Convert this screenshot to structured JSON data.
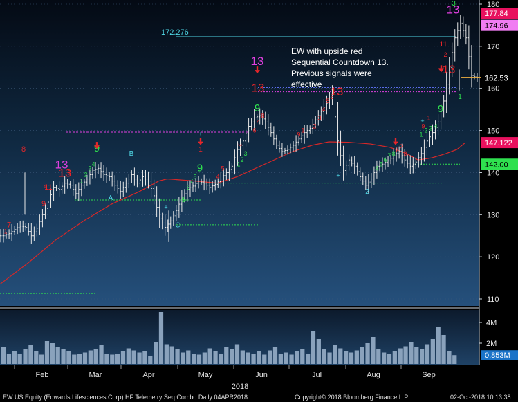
{
  "chart_data": {
    "type": "line",
    "title": "EW US Equity (Edwards Lifesciences Corp) HF Telemetry Seq Combo  Daily 04APR2018",
    "copyright": "Copyright© 2018 Bloomberg Finance L.P.",
    "timestamp": "02-Oct-2018 10:13:38",
    "year_label": "2018",
    "months": [
      "Feb",
      "Mar",
      "Apr",
      "May",
      "Jun",
      "Jul",
      "Aug",
      "Sep"
    ],
    "y_ticks": [
      110,
      120,
      130,
      140,
      150,
      160,
      170,
      180
    ],
    "ylim": [
      108,
      180.5
    ],
    "volume_ticks": [
      "2M",
      "4M"
    ],
    "volume_ylim": [
      0,
      5.2
    ],
    "price_tags": [
      {
        "label": "177.84",
        "value": 177.84,
        "color": "#e8115e"
      },
      {
        "label": "174.96",
        "value": 174.96,
        "color": "#f07cf2"
      },
      {
        "label": "162.53",
        "value": 162.53,
        "color": "#000000"
      },
      {
        "label": "147.122",
        "value": 147.122,
        "color": "#e8115e"
      },
      {
        "label": "142.00",
        "value": 142.0,
        "color": "#2fe04f"
      }
    ],
    "volume_tag": {
      "label": "0.853M",
      "value": 0.853
    },
    "resistance_level": {
      "label": "172.276",
      "value": 172.276
    },
    "annotation": [
      "EW with upside red",
      "Sequential Countdown 13.",
      "Previous signals were",
      "effective"
    ],
    "price_series": [
      [
        1,
        125.0
      ],
      [
        3,
        125.5
      ],
      [
        5,
        126.5
      ],
      [
        7,
        127.3
      ],
      [
        9,
        127.0
      ],
      [
        11,
        125.0
      ],
      [
        13,
        126.8
      ],
      [
        15,
        130.0
      ],
      [
        17,
        133.0
      ],
      [
        19,
        136.5
      ],
      [
        21,
        136.0
      ],
      [
        23,
        137.5
      ],
      [
        25,
        137.0
      ],
      [
        27,
        135.0
      ],
      [
        29,
        137.0
      ],
      [
        31,
        138.5
      ],
      [
        33,
        140.5
      ],
      [
        35,
        141.0
      ],
      [
        37,
        139.5
      ],
      [
        39,
        139.0
      ],
      [
        41,
        137.0
      ],
      [
        43,
        135.5
      ],
      [
        45,
        137.5
      ],
      [
        47,
        139.5
      ],
      [
        49,
        137.5
      ],
      [
        51,
        139.0
      ],
      [
        53,
        138.0
      ],
      [
        55,
        134.5
      ],
      [
        57,
        129.0
      ],
      [
        59,
        127.0
      ],
      [
        61,
        128.5
      ],
      [
        63,
        131.0
      ],
      [
        65,
        134.0
      ],
      [
        67,
        136.0
      ],
      [
        69,
        136.8
      ],
      [
        71,
        138.0
      ],
      [
        73,
        137.5
      ],
      [
        75,
        136.5
      ],
      [
        77,
        137.2
      ],
      [
        79,
        138.5
      ],
      [
        81,
        140.0
      ],
      [
        83,
        141.5
      ],
      [
        85,
        145.5
      ],
      [
        87,
        147.5
      ],
      [
        89,
        151.0
      ],
      [
        91,
        153.0
      ],
      [
        93,
        153.5
      ],
      [
        95,
        152.0
      ],
      [
        97,
        149.5
      ],
      [
        99,
        146.5
      ],
      [
        101,
        145.0
      ],
      [
        103,
        145.5
      ],
      [
        105,
        146.5
      ],
      [
        107,
        148.0
      ],
      [
        109,
        149.5
      ],
      [
        111,
        150.5
      ],
      [
        113,
        152.5
      ],
      [
        115,
        154.5
      ],
      [
        117,
        156.5
      ],
      [
        119,
        159.0
      ],
      [
        121,
        147.5
      ],
      [
        123,
        140.5
      ],
      [
        125,
        143.0
      ],
      [
        127,
        141.5
      ],
      [
        129,
        139.0
      ],
      [
        131,
        137.0
      ],
      [
        133,
        138.5
      ],
      [
        135,
        141.5
      ],
      [
        137,
        142.0
      ],
      [
        139,
        142.8
      ],
      [
        141,
        144.0
      ],
      [
        143,
        145.0
      ],
      [
        145,
        143.0
      ],
      [
        147,
        141.5
      ],
      [
        149,
        142.5
      ],
      [
        151,
        144.5
      ],
      [
        153,
        147.5
      ],
      [
        155,
        149.5
      ],
      [
        157,
        152.0
      ],
      [
        159,
        157.0
      ],
      [
        161,
        165.0
      ],
      [
        163,
        172.0
      ],
      [
        165,
        175.5
      ],
      [
        167,
        172.0
      ],
      [
        169,
        163.0
      ],
      [
        171,
        162.53
      ]
    ],
    "ma_series": [
      [
        0,
        113.5
      ],
      [
        10,
        118.5
      ],
      [
        20,
        124.0
      ],
      [
        30,
        128.5
      ],
      [
        40,
        132.5
      ],
      [
        50,
        135.5
      ],
      [
        57,
        138.0
      ],
      [
        60,
        138.5
      ],
      [
        70,
        138.0
      ],
      [
        78,
        137.5
      ],
      [
        85,
        139.0
      ],
      [
        95,
        142.0
      ],
      [
        105,
        145.0
      ],
      [
        112,
        146.5
      ],
      [
        118,
        147.3
      ],
      [
        125,
        147.2
      ],
      [
        133,
        146.8
      ],
      [
        140,
        146.0
      ],
      [
        146,
        144.5
      ],
      [
        150,
        143.0
      ],
      [
        155,
        143.5
      ],
      [
        160,
        144.5
      ],
      [
        164,
        145.5
      ],
      [
        167,
        147.122
      ]
    ],
    "volume_values": [
      1.6,
      1.0,
      1.2,
      1.0,
      1.4,
      1.8,
      1.2,
      0.9,
      2.2,
      2.0,
      1.6,
      1.4,
      1.2,
      0.9,
      1.0,
      1.1,
      1.3,
      1.4,
      1.8,
      1.0,
      0.9,
      1.0,
      1.2,
      1.5,
      1.3,
      1.1,
      1.2,
      0.8,
      2.1,
      5.0,
      1.9,
      1.7,
      1.4,
      1.1,
      1.3,
      1.0,
      0.9,
      1.1,
      1.5,
      1.2,
      1.0,
      1.6,
      1.4,
      1.9,
      1.3,
      1.1,
      1.0,
      1.2,
      0.9,
      1.3,
      1.6,
      1.0,
      1.1,
      0.9,
      1.2,
      1.4,
      1.0,
      3.2,
      2.4,
      1.4,
      1.1,
      1.8,
      1.5,
      1.2,
      1.1,
      1.3,
      1.6,
      2.0,
      2.6,
      1.4,
      1.1,
      1.0,
      1.2,
      1.5,
      1.7,
      2.1,
      1.6,
      1.4,
      1.9,
      2.4,
      3.6,
      2.8,
      1.2,
      0.853
    ]
  },
  "seq_labels": [
    {
      "t": "7",
      "x": 13,
      "y": 127,
      "c": "red",
      "s": 11
    },
    {
      "t": "9",
      "x": 63,
      "y": 132,
      "c": "red",
      "s": 11
    },
    {
      "t": "11",
      "x": 70,
      "y": 136,
      "c": "red",
      "s": 11
    },
    {
      "t": "8",
      "x": 34,
      "y": 145,
      "c": "red",
      "s": 11
    },
    {
      "t": "13",
      "x": 89,
      "y": 141,
      "c": "mag",
      "s": 17
    },
    {
      "t": "13",
      "x": 94,
      "y": 139,
      "c": "red",
      "s": 17
    },
    {
      "t": "9",
      "x": 140,
      "y": 145,
      "c": "green",
      "s": 15
    },
    {
      "t": "A",
      "x": 160,
      "y": 133.5,
      "c": "cyan",
      "s": 10
    },
    {
      "t": "B",
      "x": 190,
      "y": 144,
      "c": "cyan",
      "s": 10
    },
    {
      "t": "C",
      "x": 257,
      "y": 127,
      "c": "cyan",
      "s": 10
    },
    {
      "t": "9",
      "x": 289,
      "y": 140.3,
      "c": "green",
      "s": 15
    },
    {
      "t": "1",
      "x": 290,
      "y": 145,
      "c": "red",
      "s": 10
    },
    {
      "t": "9",
      "x": 347,
      "y": 146,
      "c": "red",
      "s": 10
    },
    {
      "t": "9",
      "x": 372,
      "y": 154.5,
      "c": "green",
      "s": 15
    },
    {
      "t": "13",
      "x": 372,
      "y": 165.5,
      "c": "mag",
      "s": 17
    },
    {
      "t": "13",
      "x": 373,
      "y": 159.2,
      "c": "red",
      "s": 17
    },
    {
      "t": "13",
      "x": 487,
      "y": 158.3,
      "c": "red",
      "s": 17
    },
    {
      "t": "2",
      "x": 531,
      "y": 135,
      "c": "cyan",
      "s": 10
    },
    {
      "t": "2",
      "x": 580,
      "y": 145.5,
      "c": "red",
      "s": 11
    },
    {
      "t": "9",
      "x": 637,
      "y": 154.4,
      "c": "green",
      "s": 15
    },
    {
      "t": "13",
      "x": 649,
      "y": 163.6,
      "c": "red",
      "s": 17
    },
    {
      "t": "11",
      "x": 641,
      "y": 170,
      "c": "red",
      "s": 11
    },
    {
      "t": "13",
      "x": 655,
      "y": 177.8,
      "c": "mag",
      "s": 17
    },
    {
      "t": "3",
      "x": 656,
      "y": 179.7,
      "c": "green",
      "s": 10
    },
    {
      "t": "1",
      "x": 665,
      "y": 157.5,
      "c": "green",
      "s": 10
    }
  ]
}
